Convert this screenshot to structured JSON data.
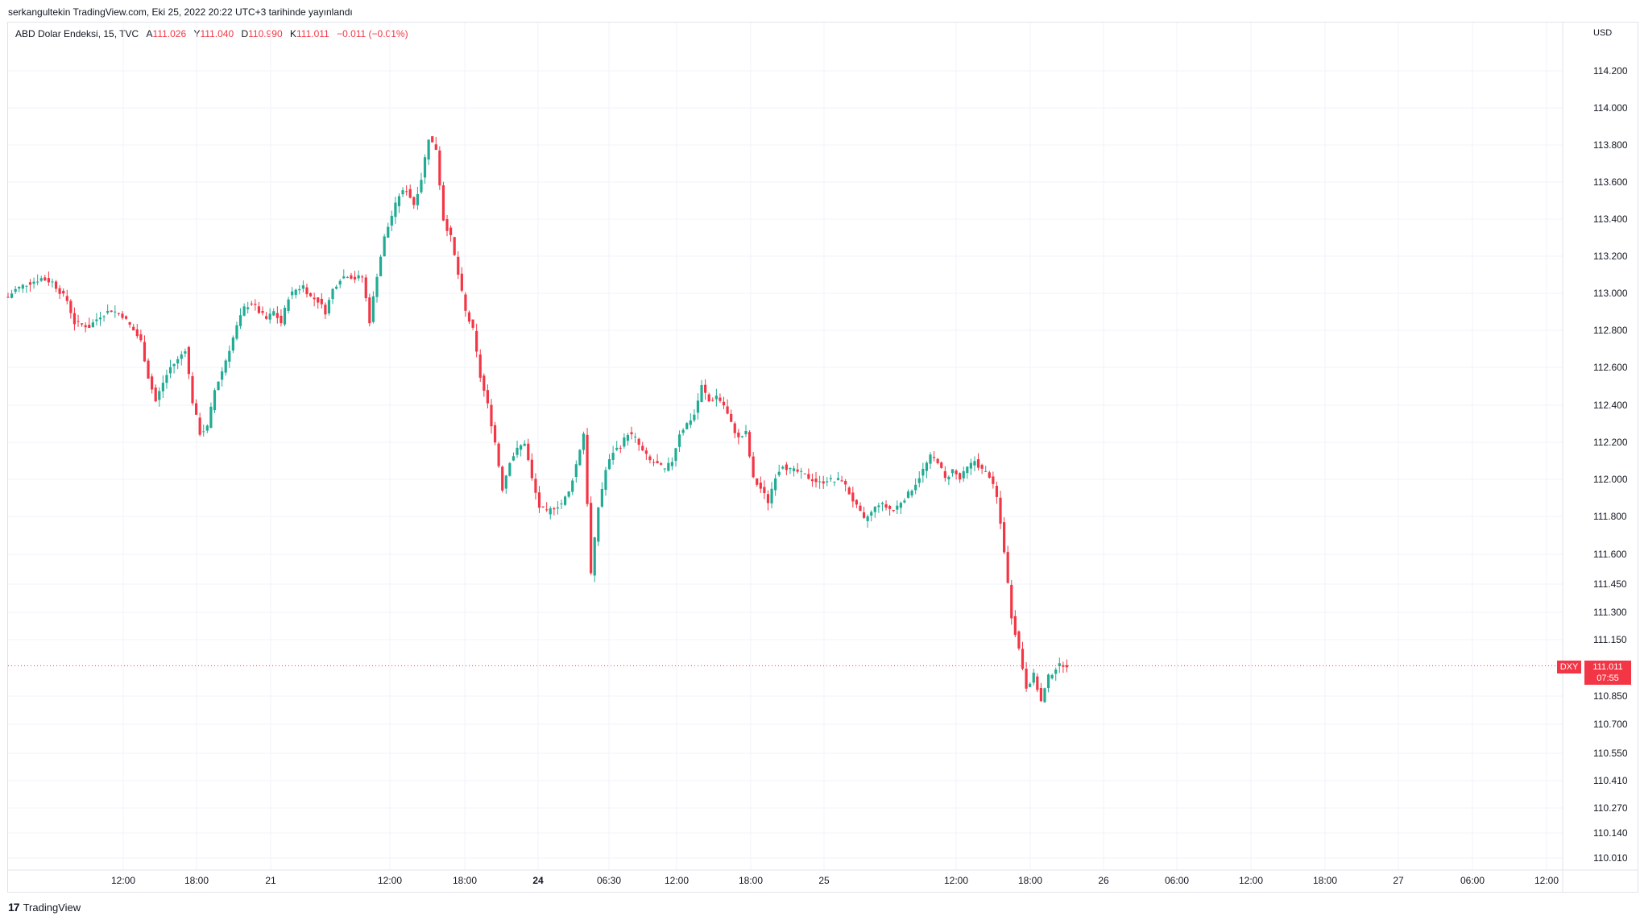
{
  "header": {
    "published": "serkangultekin TradingView.com, Eki 25, 2022 20:22 UTC+3 tarihinde yayınlandı"
  },
  "legend": {
    "symbol": "ABD Dolar Endeksi, 15, TVC",
    "open_label": "A",
    "open": "111.026",
    "high_label": "Y",
    "high": "111.040",
    "low_label": "D",
    "low": "110.990",
    "close_label": "K",
    "close": "111.011",
    "change": "−0.011 (−0.01%)"
  },
  "currency": "USD",
  "last_price": {
    "symbol": "DXY",
    "price": "111.011",
    "countdown": "07:55"
  },
  "brand": {
    "logo": "17",
    "name": "TradingView"
  },
  "colors": {
    "up": "#22ab94",
    "down": "#f23645",
    "grid": "#f0f3fa",
    "axis_text": "#131722"
  },
  "chart_data": {
    "type": "candlestick",
    "series_name": "ABD Dolar Endeksi",
    "interval": "15",
    "y_axis": {
      "ticks": [
        "114.200",
        "114.000",
        "113.800",
        "113.600",
        "113.400",
        "113.200",
        "113.000",
        "112.800",
        "112.600",
        "112.400",
        "112.200",
        "112.000",
        "111.800",
        "111.600",
        "111.450",
        "111.300",
        "111.150",
        "110.850",
        "110.700",
        "110.550",
        "110.410",
        "110.270",
        "110.140",
        "110.010"
      ],
      "scale": "log-like"
    },
    "x_axis": {
      "ticks": [
        "12:00",
        "18:00",
        "21",
        "12:00",
        "18:00",
        "24",
        "06:30",
        "12:00",
        "18:00",
        "25",
        "12:00",
        "18:00",
        "26",
        "06:00",
        "12:00",
        "18:00",
        "27",
        "06:00",
        "12:00"
      ],
      "bold_ticks": [
        "24"
      ]
    },
    "last_value": 111.011,
    "path": [
      [
        0,
        112.98
      ],
      [
        2,
        113.02
      ],
      [
        5,
        113.05
      ],
      [
        9,
        113.08
      ],
      [
        12,
        113.06
      ],
      [
        16,
        112.96
      ],
      [
        18,
        112.84
      ],
      [
        22,
        112.82
      ],
      [
        25,
        112.88
      ],
      [
        28,
        112.91
      ],
      [
        31,
        112.88
      ],
      [
        34,
        112.8
      ],
      [
        36,
        112.74
      ],
      [
        38,
        112.55
      ],
      [
        40,
        112.42
      ],
      [
        42,
        112.52
      ],
      [
        44,
        112.6
      ],
      [
        46,
        112.64
      ],
      [
        48,
        112.7
      ],
      [
        50,
        112.42
      ],
      [
        52,
        112.25
      ],
      [
        54,
        112.28
      ],
      [
        56,
        112.48
      ],
      [
        58,
        112.58
      ],
      [
        60,
        112.7
      ],
      [
        62,
        112.82
      ],
      [
        64,
        112.92
      ],
      [
        66,
        112.95
      ],
      [
        68,
        112.9
      ],
      [
        70,
        112.86
      ],
      [
        72,
        112.9
      ],
      [
        74,
        112.84
      ],
      [
        76,
        112.98
      ],
      [
        78,
        113.02
      ],
      [
        80,
        113.04
      ],
      [
        82,
        112.98
      ],
      [
        84,
        112.96
      ],
      [
        86,
        112.9
      ],
      [
        88,
        113.02
      ],
      [
        90,
        113.08
      ],
      [
        92,
        113.1
      ],
      [
        94,
        113.08
      ],
      [
        96,
        113.09
      ],
      [
        98,
        112.85
      ],
      [
        100,
        113.1
      ],
      [
        102,
        113.3
      ],
      [
        104,
        113.42
      ],
      [
        106,
        113.53
      ],
      [
        108,
        113.56
      ],
      [
        110,
        113.48
      ],
      [
        112,
        113.62
      ],
      [
        114,
        113.84
      ],
      [
        116,
        113.78
      ],
      [
        118,
        113.4
      ],
      [
        120,
        113.3
      ],
      [
        122,
        113.1
      ],
      [
        124,
        112.9
      ],
      [
        126,
        112.8
      ],
      [
        128,
        112.55
      ],
      [
        130,
        112.4
      ],
      [
        132,
        112.2
      ],
      [
        134,
        111.95
      ],
      [
        136,
        112.1
      ],
      [
        138,
        112.16
      ],
      [
        140,
        112.2
      ],
      [
        142,
        112.0
      ],
      [
        144,
        111.85
      ],
      [
        146,
        111.82
      ],
      [
        148,
        111.85
      ],
      [
        150,
        111.87
      ],
      [
        152,
        111.93
      ],
      [
        154,
        112.08
      ],
      [
        156,
        112.25
      ],
      [
        158,
        111.5
      ],
      [
        160,
        111.85
      ],
      [
        162,
        112.05
      ],
      [
        164,
        112.15
      ],
      [
        166,
        112.18
      ],
      [
        168,
        112.25
      ],
      [
        170,
        112.22
      ],
      [
        172,
        112.15
      ],
      [
        174,
        112.1
      ],
      [
        176,
        112.08
      ],
      [
        178,
        112.05
      ],
      [
        180,
        112.1
      ],
      [
        182,
        112.25
      ],
      [
        184,
        112.3
      ],
      [
        186,
        112.35
      ],
      [
        188,
        112.5
      ],
      [
        190,
        112.42
      ],
      [
        192,
        112.45
      ],
      [
        194,
        112.4
      ],
      [
        196,
        112.3
      ],
      [
        198,
        112.22
      ],
      [
        200,
        112.25
      ],
      [
        202,
        112.0
      ],
      [
        204,
        111.95
      ],
      [
        206,
        111.88
      ],
      [
        208,
        112.02
      ],
      [
        210,
        112.08
      ],
      [
        212,
        112.05
      ],
      [
        214,
        112.04
      ],
      [
        216,
        112.02
      ],
      [
        218,
        112.0
      ],
      [
        220,
        111.98
      ],
      [
        222,
        112.0
      ],
      [
        224,
        111.99
      ],
      [
        226,
        112.0
      ],
      [
        230,
        111.85
      ],
      [
        232,
        111.78
      ],
      [
        234,
        111.82
      ],
      [
        236,
        111.87
      ],
      [
        238,
        111.85
      ],
      [
        240,
        111.83
      ],
      [
        242,
        111.88
      ],
      [
        244,
        111.92
      ],
      [
        246,
        111.98
      ],
      [
        248,
        112.05
      ],
      [
        250,
        112.12
      ],
      [
        252,
        112.1
      ],
      [
        254,
        112.0
      ],
      [
        256,
        112.05
      ],
      [
        258,
        112.0
      ],
      [
        260,
        112.06
      ],
      [
        262,
        112.1
      ],
      [
        264,
        112.05
      ],
      [
        266,
        112.02
      ],
      [
        268,
        111.9
      ],
      [
        270,
        111.62
      ],
      [
        272,
        111.28
      ],
      [
        274,
        111.1
      ],
      [
        276,
        110.9
      ],
      [
        278,
        110.96
      ],
      [
        280,
        110.82
      ],
      [
        282,
        110.95
      ],
      [
        284,
        111.0
      ],
      [
        286,
        111.02
      ],
      [
        288,
        111.011
      ]
    ]
  }
}
